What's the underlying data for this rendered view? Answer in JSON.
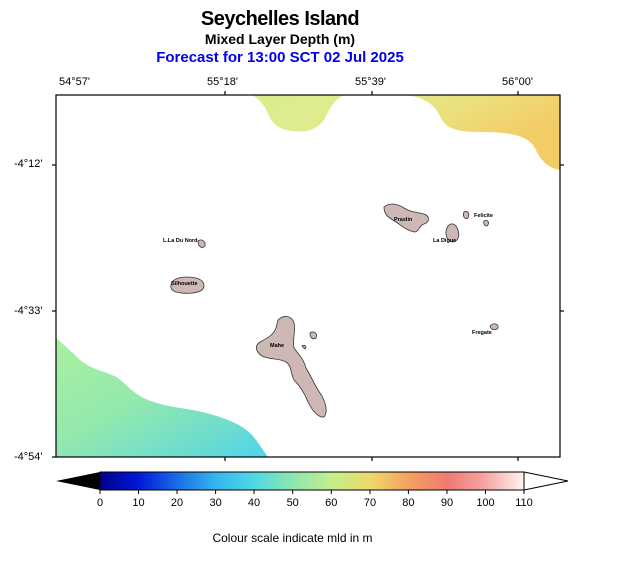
{
  "header": {
    "title": "Seychelles Island",
    "subtitle": "Mixed Layer Depth (m)",
    "forecast": "Forecast for  13:00 SCT 02 Jul 2025"
  },
  "axes": {
    "lon_labels": [
      "54°57'",
      "55°18'",
      "55°39'",
      "56°00'"
    ],
    "lat_labels": [
      "-4°12'",
      "-4°33'",
      "-4°54'"
    ]
  },
  "islands": [
    {
      "name": "Mahe"
    },
    {
      "name": "Praslin"
    },
    {
      "name": "La Digue"
    },
    {
      "name": "Felicite"
    },
    {
      "name": "Silhouette"
    },
    {
      "name": "L.La Du Nord"
    },
    {
      "name": "Fregate"
    }
  ],
  "colorbar": {
    "ticks": [
      "0",
      "10",
      "20",
      "30",
      "40",
      "50",
      "60",
      "70",
      "80",
      "90",
      "100",
      "110"
    ],
    "caption": "Colour scale indicate mld in m"
  }
}
